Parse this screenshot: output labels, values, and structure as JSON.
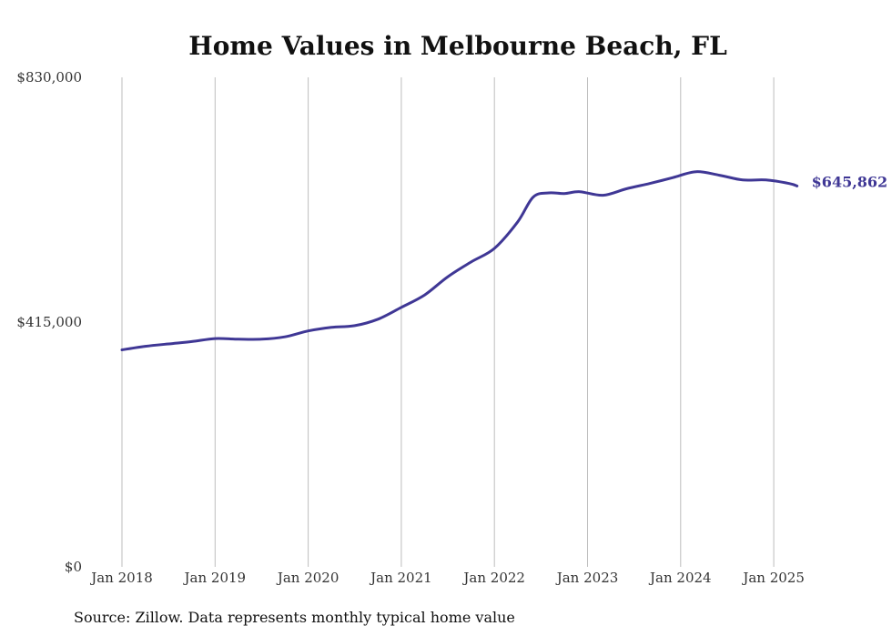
{
  "chart_data": {
    "type": "line",
    "title": "Home Values in Melbourne Beach, FL",
    "xlabel": "",
    "ylabel": "",
    "x_ticks": [
      "Jan 2018",
      "Jan 2019",
      "Jan 2020",
      "Jan 2021",
      "Jan 2022",
      "Jan 2023",
      "Jan 2024",
      "Jan 2025"
    ],
    "y_ticks": [
      "$0",
      "$415,000",
      "$830,000"
    ],
    "y_tick_values": [
      0,
      415000,
      830000
    ],
    "ylim": [
      0,
      830000
    ],
    "xlim": [
      "2018-01",
      "2025-12"
    ],
    "grid": "vertical",
    "series": [
      {
        "color": "#3f3795",
        "points": [
          {
            "x": "2018-01",
            "y": 368000
          },
          {
            "x": "2018-04",
            "y": 374000
          },
          {
            "x": "2018-07",
            "y": 378000
          },
          {
            "x": "2018-10",
            "y": 382000
          },
          {
            "x": "2019-01",
            "y": 387000
          },
          {
            "x": "2019-04",
            "y": 386000
          },
          {
            "x": "2019-07",
            "y": 386000
          },
          {
            "x": "2019-10",
            "y": 390000
          },
          {
            "x": "2020-01",
            "y": 400000
          },
          {
            "x": "2020-04",
            "y": 406000
          },
          {
            "x": "2020-07",
            "y": 409000
          },
          {
            "x": "2020-10",
            "y": 420000
          },
          {
            "x": "2021-01",
            "y": 440000
          },
          {
            "x": "2021-04",
            "y": 461000
          },
          {
            "x": "2021-07",
            "y": 492000
          },
          {
            "x": "2021-10",
            "y": 517000
          },
          {
            "x": "2022-01",
            "y": 540000
          },
          {
            "x": "2022-04",
            "y": 585000
          },
          {
            "x": "2022-06",
            "y": 627000
          },
          {
            "x": "2022-08",
            "y": 634000
          },
          {
            "x": "2022-10",
            "y": 633000
          },
          {
            "x": "2022-12",
            "y": 636000
          },
          {
            "x": "2023-03",
            "y": 630000
          },
          {
            "x": "2023-06",
            "y": 641000
          },
          {
            "x": "2023-09",
            "y": 650000
          },
          {
            "x": "2023-12",
            "y": 660000
          },
          {
            "x": "2024-03",
            "y": 670000
          },
          {
            "x": "2024-06",
            "y": 664000
          },
          {
            "x": "2024-09",
            "y": 656000
          },
          {
            "x": "2024-12",
            "y": 656000
          },
          {
            "x": "2025-03",
            "y": 650000
          },
          {
            "x": "2025-04",
            "y": 645862
          }
        ]
      }
    ],
    "end_label": "$645,862"
  },
  "source_note": "Source: Zillow. Data represents monthly typical home value"
}
